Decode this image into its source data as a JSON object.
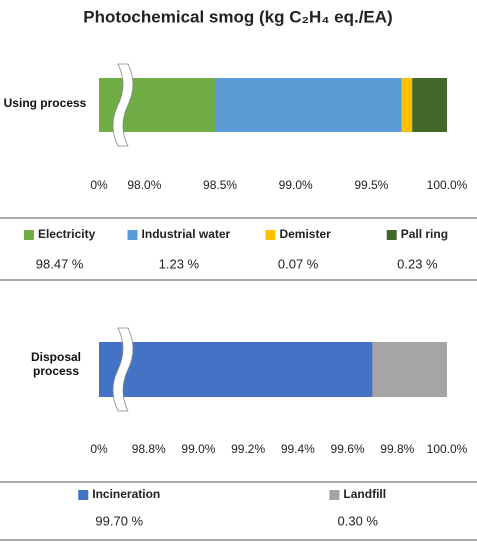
{
  "chart_data": [
    {
      "type": "stacked-bar-horizontal",
      "title": "Photochemical smog (kg C₂H₄ eq./EA)",
      "categories": [
        "Using process"
      ],
      "series": [
        {
          "name": "Electricity",
          "color": "#70ad47",
          "values": [
            98.47
          ],
          "value_labels": [
            "98.47 %"
          ]
        },
        {
          "name": "Industrial water",
          "color": "#5b9bd5",
          "values": [
            1.23
          ],
          "value_labels": [
            "1.23 %"
          ]
        },
        {
          "name": "Demister",
          "color": "#ffc000",
          "values": [
            0.07
          ],
          "value_labels": [
            "0.07 %"
          ]
        },
        {
          "name": "Pall ring",
          "color": "#43682b",
          "values": [
            0.23
          ],
          "value_labels": [
            "0.23 %"
          ]
        }
      ],
      "xlim": [
        97.7,
        100
      ],
      "axis_break": true,
      "xticks": [
        {
          "value": 0,
          "label": "0%"
        },
        {
          "value": 98.0,
          "label": "98.0%"
        },
        {
          "value": 98.5,
          "label": "98.5%"
        },
        {
          "value": 99.0,
          "label": "99.0%"
        },
        {
          "value": 99.5,
          "label": "99.5%"
        },
        {
          "value": 100.0,
          "label": "100.0%"
        }
      ]
    },
    {
      "type": "stacked-bar-horizontal",
      "categories": [
        "Disposal process"
      ],
      "series": [
        {
          "name": "Incineration",
          "color": "#4472c4",
          "values": [
            99.7
          ],
          "value_labels": [
            "99.70 %"
          ]
        },
        {
          "name": "Landfill",
          "color": "#a5a5a5",
          "values": [
            0.3
          ],
          "value_labels": [
            "0.30 %"
          ]
        }
      ],
      "xlim": [
        98.6,
        100
      ],
      "axis_break": true,
      "xticks": [
        {
          "value": 0,
          "label": "0%"
        },
        {
          "value": 98.8,
          "label": "98.8%"
        },
        {
          "value": 99.0,
          "label": "99.0%"
        },
        {
          "value": 99.2,
          "label": "99.2%"
        },
        {
          "value": 99.4,
          "label": "99.4%"
        },
        {
          "value": 99.6,
          "label": "99.6%"
        },
        {
          "value": 99.8,
          "label": "99.8%"
        },
        {
          "value": 100.0,
          "label": "100.0%"
        }
      ]
    }
  ]
}
